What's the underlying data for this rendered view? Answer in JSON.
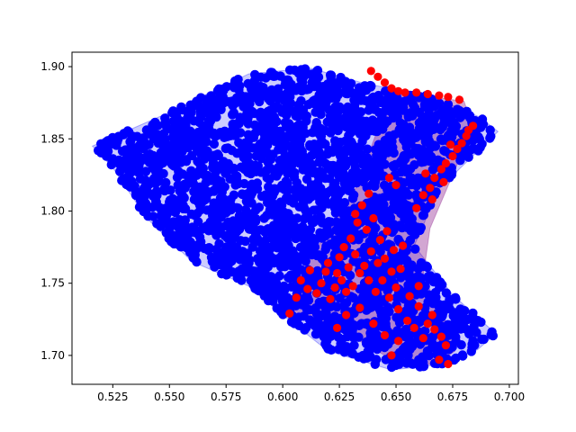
{
  "chart_data": {
    "type": "scatter",
    "title": "",
    "xlabel": "",
    "ylabel": "",
    "xlim": [
      0.507,
      0.704
    ],
    "ylim": [
      1.68,
      1.91
    ],
    "x_ticks": [
      0.525,
      0.55,
      0.575,
      0.6,
      0.625,
      0.65,
      0.675,
      0.7
    ],
    "x_tick_labels": [
      "0.525",
      "0.550",
      "0.575",
      "0.600",
      "0.625",
      "0.650",
      "0.675",
      "0.700"
    ],
    "y_ticks": [
      1.7,
      1.75,
      1.8,
      1.85,
      1.9
    ],
    "y_tick_labels": [
      "1.70",
      "1.75",
      "1.80",
      "1.85",
      "1.90"
    ],
    "grid": false,
    "colors": {
      "blue": "#0000ff",
      "red": "#ff0000",
      "blue_hull_fill": "#0000ff",
      "red_hull_fill": "#7f007f"
    },
    "hulls": [
      {
        "color": "blue",
        "vertices": [
          [
            0.516,
            1.845
          ],
          [
            0.548,
            1.867
          ],
          [
            0.585,
            1.895
          ],
          [
            0.612,
            1.899
          ],
          [
            0.637,
            1.888
          ],
          [
            0.665,
            1.88
          ],
          [
            0.687,
            1.865
          ],
          [
            0.695,
            1.855
          ],
          [
            0.668,
            1.814
          ],
          [
            0.662,
            1.79
          ],
          [
            0.658,
            1.776
          ],
          [
            0.675,
            1.742
          ],
          [
            0.694,
            1.715
          ],
          [
            0.686,
            1.704
          ],
          [
            0.672,
            1.694
          ],
          [
            0.648,
            1.69
          ],
          [
            0.62,
            1.703
          ],
          [
            0.6,
            1.728
          ],
          [
            0.585,
            1.748
          ],
          [
            0.56,
            1.765
          ],
          [
            0.54,
            1.795
          ],
          [
            0.525,
            1.83
          ]
        ]
      },
      {
        "color": "red",
        "vertices": [
          [
            0.648,
            1.883
          ],
          [
            0.68,
            1.876
          ],
          [
            0.684,
            1.858
          ],
          [
            0.665,
            1.788
          ],
          [
            0.662,
            1.755
          ],
          [
            0.673,
            1.72
          ],
          [
            0.676,
            1.703
          ],
          [
            0.667,
            1.693
          ],
          [
            0.645,
            1.7
          ],
          [
            0.625,
            1.718
          ],
          [
            0.604,
            1.728
          ],
          [
            0.607,
            1.757
          ],
          [
            0.622,
            1.79
          ],
          [
            0.633,
            1.818
          ]
        ]
      }
    ],
    "blue_regions": [
      {
        "x_range": [
          0.516,
          0.68
        ],
        "y_range": [
          1.73,
          1.9
        ]
      },
      {
        "x_range": [
          0.58,
          0.695
        ],
        "y_range": [
          1.69,
          1.86
        ]
      }
    ],
    "red_points": [
      [
        0.603,
        1.729
      ],
      [
        0.606,
        1.74
      ],
      [
        0.608,
        1.752
      ],
      [
        0.611,
        1.746
      ],
      [
        0.612,
        1.759
      ],
      [
        0.615,
        1.743
      ],
      [
        0.617,
        1.75
      ],
      [
        0.619,
        1.758
      ],
      [
        0.62,
        1.764
      ],
      [
        0.621,
        1.739
      ],
      [
        0.623,
        1.747
      ],
      [
        0.624,
        1.757
      ],
      [
        0.625,
        1.768
      ],
      [
        0.626,
        1.752
      ],
      [
        0.627,
        1.775
      ],
      [
        0.628,
        1.744
      ],
      [
        0.629,
        1.761
      ],
      [
        0.63,
        1.781
      ],
      [
        0.631,
        1.748
      ],
      [
        0.632,
        1.77
      ],
      [
        0.633,
        1.792
      ],
      [
        0.634,
        1.757
      ],
      [
        0.635,
        1.804
      ],
      [
        0.636,
        1.762
      ],
      [
        0.637,
        1.787
      ],
      [
        0.638,
        1.752
      ],
      [
        0.639,
        1.772
      ],
      [
        0.64,
        1.795
      ],
      [
        0.641,
        1.744
      ],
      [
        0.642,
        1.764
      ],
      [
        0.643,
        1.78
      ],
      [
        0.644,
        1.752
      ],
      [
        0.645,
        1.767
      ],
      [
        0.646,
        1.786
      ],
      [
        0.647,
        1.74
      ],
      [
        0.648,
        1.758
      ],
      [
        0.649,
        1.773
      ],
      [
        0.65,
        1.747
      ],
      [
        0.651,
        1.732
      ],
      [
        0.652,
        1.76
      ],
      [
        0.653,
        1.776
      ],
      [
        0.65,
        1.818
      ],
      [
        0.647,
        1.823
      ],
      [
        0.638,
        1.812
      ],
      [
        0.632,
        1.798
      ],
      [
        0.624,
        1.719
      ],
      [
        0.628,
        1.728
      ],
      [
        0.634,
        1.733
      ],
      [
        0.64,
        1.722
      ],
      [
        0.645,
        1.714
      ],
      [
        0.648,
        1.7
      ],
      [
        0.651,
        1.71
      ],
      [
        0.655,
        1.724
      ],
      [
        0.658,
        1.719
      ],
      [
        0.662,
        1.712
      ],
      [
        0.664,
        1.722
      ],
      [
        0.667,
        1.718
      ],
      [
        0.67,
        1.713
      ],
      [
        0.672,
        1.707
      ],
      [
        0.669,
        1.697
      ],
      [
        0.673,
        1.694
      ],
      [
        0.666,
        1.728
      ],
      [
        0.66,
        1.734
      ],
      [
        0.656,
        1.741
      ],
      [
        0.66,
        1.748
      ],
      [
        0.659,
        1.802
      ],
      [
        0.662,
        1.811
      ],
      [
        0.665,
        1.816
      ],
      [
        0.667,
        1.823
      ],
      [
        0.67,
        1.829
      ],
      [
        0.672,
        1.833
      ],
      [
        0.675,
        1.838
      ],
      [
        0.677,
        1.843
      ],
      [
        0.679,
        1.847
      ],
      [
        0.681,
        1.852
      ],
      [
        0.682,
        1.856
      ],
      [
        0.684,
        1.859
      ],
      [
        0.671,
        1.82
      ],
      [
        0.666,
        1.808
      ],
      [
        0.663,
        1.826
      ],
      [
        0.674,
        1.846
      ],
      [
        0.639,
        1.897
      ],
      [
        0.642,
        1.893
      ],
      [
        0.645,
        1.889
      ],
      [
        0.648,
        1.885
      ],
      [
        0.651,
        1.883
      ],
      [
        0.654,
        1.882
      ],
      [
        0.659,
        1.882
      ],
      [
        0.664,
        1.881
      ],
      [
        0.669,
        1.88
      ],
      [
        0.673,
        1.879
      ],
      [
        0.678,
        1.877
      ]
    ]
  }
}
